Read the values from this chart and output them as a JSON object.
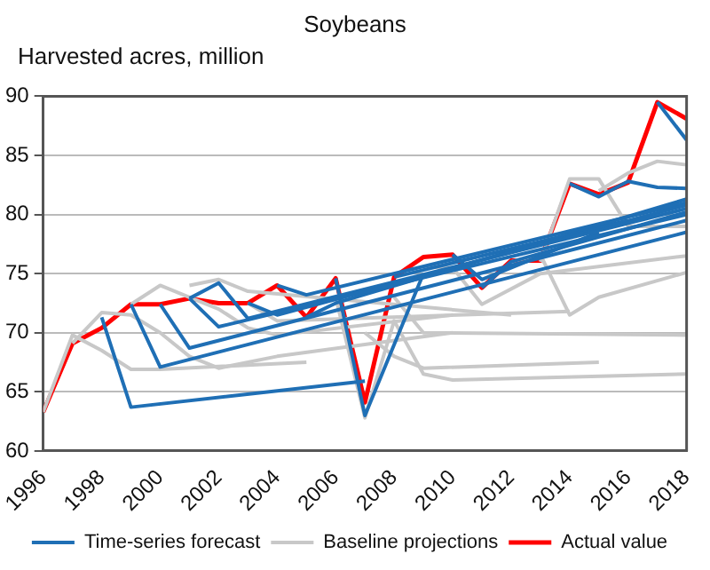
{
  "chart_data": {
    "type": "line",
    "title": "Soybeans",
    "ylabel": "Harvested acres, million",
    "xlim": [
      1996,
      2018
    ],
    "xticks": [
      1996,
      1998,
      2000,
      2002,
      2004,
      2006,
      2008,
      2010,
      2012,
      2014,
      2016,
      2018
    ],
    "ylim": [
      60,
      90
    ],
    "yticks": [
      60,
      65,
      70,
      75,
      80,
      85,
      90
    ],
    "grid": "y",
    "legend": "bottom",
    "marker": "none",
    "line_style": "solid",
    "series": [
      {
        "name": "Time-series forecast",
        "color": "#1f6fb5",
        "x": [
          1998,
          1999,
          2007
        ],
        "values": [
          71.3,
          63.7,
          65.9
        ]
      },
      {
        "color": "#1f6fb5",
        "x": [
          1999,
          2000,
          2018
        ],
        "values": [
          72.4,
          67.1,
          78.5
        ]
      },
      {
        "color": "#1f6fb5",
        "x": [
          2000,
          2001,
          2018
        ],
        "values": [
          72.4,
          68.7,
          79.5
        ]
      },
      {
        "color": "#1f6fb5",
        "x": [
          2001,
          2002,
          2018
        ],
        "values": [
          72.9,
          70.5,
          80
        ]
      },
      {
        "color": "#1f6fb5",
        "x": [
          2001,
          2002,
          2003,
          2018
        ],
        "values": [
          72.9,
          74.2,
          71.2,
          80.5
        ]
      },
      {
        "color": "#1f6fb5",
        "x": [
          2003,
          2004,
          2018
        ],
        "values": [
          72.5,
          71.5,
          80.8
        ]
      },
      {
        "color": "#1f6fb5",
        "x": [
          2004,
          2005,
          2018
        ],
        "values": [
          74,
          73.2,
          81
        ]
      },
      {
        "color": "#1f6fb5",
        "x": [
          2005,
          2006,
          2018
        ],
        "values": [
          71.3,
          72.5,
          81.3
        ]
      },
      {
        "color": "#1f6fb5",
        "x": [
          2006,
          2007,
          2009
        ],
        "values": [
          74.6,
          63,
          75
        ]
      },
      {
        "color": "#1f6fb5",
        "x": [
          2008,
          2009,
          2016
        ],
        "values": [
          74.7,
          75.3,
          79.5
        ]
      },
      {
        "color": "#1f6fb5",
        "x": [
          2010,
          2011,
          2015
        ],
        "values": [
          76.6,
          74.5,
          78.5
        ]
      },
      {
        "color": "#1f6fb5",
        "x": [
          2011,
          2012,
          2018
        ],
        "values": [
          73.8,
          76,
          80.2
        ]
      },
      {
        "color": "#1f6fb5",
        "x": [
          2014,
          2015,
          2016,
          2017,
          2018
        ],
        "values": [
          82.6,
          81.5,
          82.8,
          82.3,
          82.2
        ]
      },
      {
        "color": "#1f6fb5",
        "x": [
          2017,
          2018
        ],
        "values": [
          89.5,
          86.3
        ]
      },
      {
        "name": "Baseline projections",
        "color": "#c8c8c8",
        "x": [
          1996,
          1997,
          1998,
          1999,
          2000,
          2005
        ],
        "values": [
          63.3,
          69.8,
          68.5,
          66.9,
          66.9,
          67.5
        ]
      },
      {
        "color": "#c8c8c8",
        "x": [
          1997,
          1998,
          1999,
          2000,
          2001,
          2002,
          2004,
          2010
        ],
        "values": [
          69.1,
          71.7,
          71.5,
          70,
          68,
          67,
          68,
          70
        ]
      },
      {
        "color": "#c8c8c8",
        "x": [
          1999,
          2000,
          2001,
          2002,
          2003,
          2004,
          2010
        ],
        "values": [
          72.4,
          74,
          73,
          72,
          70.4,
          69.8,
          71.5
        ]
      },
      {
        "color": "#c8c8c8",
        "x": [
          2001,
          2002,
          2003,
          2012
        ],
        "values": [
          74,
          74.5,
          73.5,
          71.5
        ]
      },
      {
        "color": "#c8c8c8",
        "x": [
          2003,
          2004,
          2014
        ],
        "values": [
          72.5,
          71,
          71.8
        ]
      },
      {
        "color": "#c8c8c8",
        "x": [
          2006,
          2007,
          2008,
          2009,
          2010,
          2018
        ],
        "values": [
          73,
          62.8,
          71,
          66.5,
          66,
          66.5
        ]
      },
      {
        "color": "#c8c8c8",
        "x": [
          2007,
          2008,
          2009,
          2015
        ],
        "values": [
          70,
          68,
          67,
          67.5
        ]
      },
      {
        "color": "#c8c8c8",
        "x": [
          2008,
          2009,
          2018
        ],
        "values": [
          73,
          70,
          69.8
        ]
      },
      {
        "color": "#c8c8c8",
        "x": [
          2009,
          2010,
          2011,
          2013,
          2018
        ],
        "values": [
          75.6,
          75.5,
          72.4,
          75,
          76.5
        ]
      },
      {
        "color": "#c8c8c8",
        "x": [
          2012,
          2013,
          2014,
          2015,
          2018
        ],
        "values": [
          76,
          76.6,
          71.5,
          73,
          75.1
        ]
      },
      {
        "color": "#c8c8c8",
        "x": [
          2013,
          2014,
          2015,
          2016,
          2018
        ],
        "values": [
          76,
          83,
          83,
          79,
          79
        ]
      },
      {
        "color": "#c8c8c8",
        "x": [
          2015,
          2016,
          2017,
          2018
        ],
        "values": [
          82,
          83.5,
          84.5,
          84.2
        ]
      },
      {
        "name": "Actual value",
        "color": "#ff0000",
        "x": [
          1996,
          1997,
          1998,
          1999,
          2000,
          2001,
          2002,
          2003,
          2004,
          2005,
          2006,
          2007,
          2008,
          2009,
          2010,
          2011,
          2012,
          2013,
          2014,
          2015,
          2016,
          2017,
          2018
        ],
        "values": [
          63.3,
          69.1,
          70.4,
          72.4,
          72.4,
          72.9,
          72.5,
          72.5,
          74,
          71.3,
          74.6,
          64.1,
          74.7,
          76.4,
          76.6,
          73.8,
          76.1,
          76.1,
          82.6,
          81.7,
          82.7,
          89.5,
          88.1
        ]
      }
    ]
  }
}
